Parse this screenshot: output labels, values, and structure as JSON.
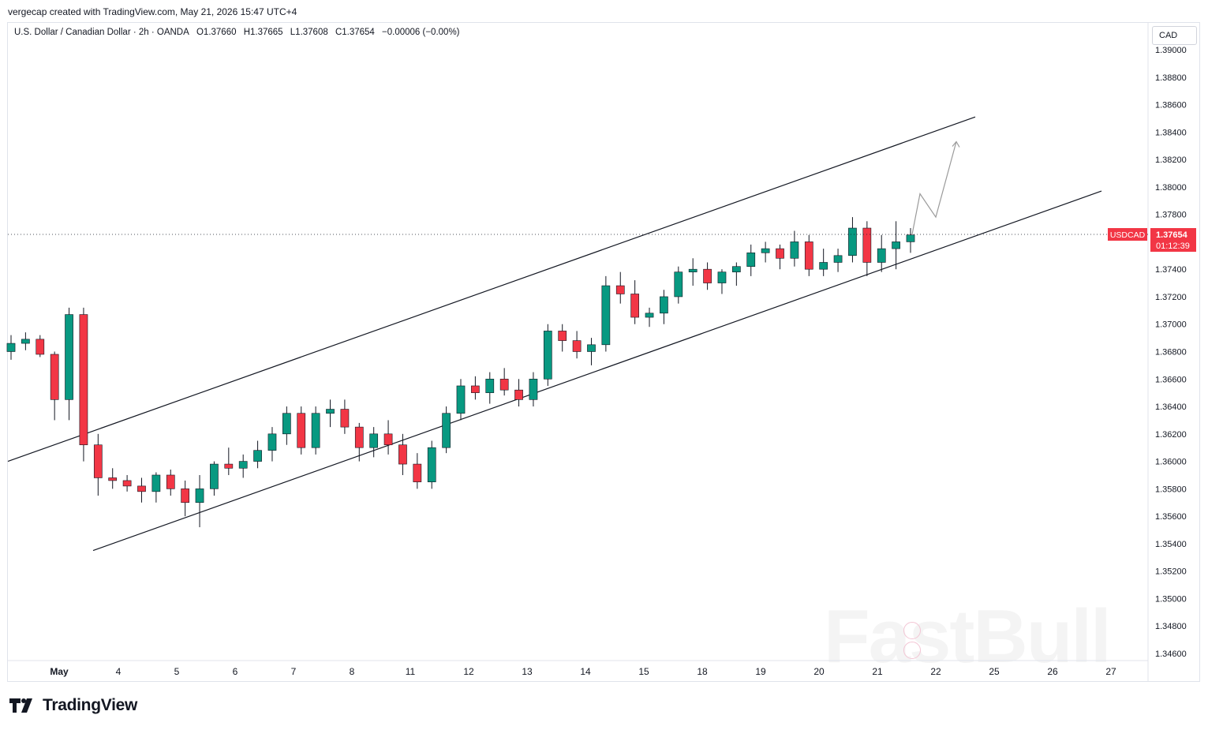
{
  "header": {
    "credit": "vergecap created with TradingView.com, May 21, 2026 15:47 UTC+4",
    "symbol_title": "U.S. Dollar / Canadian Dollar · 2h · OANDA",
    "ohlc": {
      "open": "O1.37660",
      "high": "H1.37665",
      "low": "L1.37608",
      "close": "C1.37654",
      "change": "−0.00006 (−0.00%)"
    }
  },
  "price_axis": {
    "currency": "CAD",
    "labels": [
      "1.39000",
      "1.38800",
      "1.38600",
      "1.38400",
      "1.38200",
      "1.38000",
      "1.37800",
      "1.37600",
      "1.37400",
      "1.37200",
      "1.37000",
      "1.36800",
      "1.36600",
      "1.36400",
      "1.36200",
      "1.36000",
      "1.35800",
      "1.35600",
      "1.35400",
      "1.35200",
      "1.35000",
      "1.34800",
      "1.34600"
    ]
  },
  "last_price": {
    "symbol": "USDCAD",
    "price": "1.37654",
    "countdown": "01:12:39",
    "color": "#f23645"
  },
  "colors": {
    "up": "#089981",
    "down": "#f23645",
    "wick": "#131722",
    "line": "#131722",
    "projection": "#9a9a9a"
  },
  "chart_data": {
    "type": "candlestick",
    "symbol": "USDCAD",
    "interval": "2h",
    "ylim": [
      1.3455,
      1.3907
    ],
    "x_tick_labels": [
      "May",
      "4",
      "5",
      "6",
      "7",
      "8",
      "11",
      "12",
      "13",
      "14",
      "15",
      "18",
      "19",
      "20",
      "21",
      "22",
      "25",
      "26",
      "27"
    ],
    "current_price": 1.37654,
    "grid": false,
    "candles_ohl_c": [
      [
        1.368,
        1.3692,
        1.3674,
        1.3686
      ],
      [
        1.3686,
        1.3694,
        1.3681,
        1.3689
      ],
      [
        1.3689,
        1.3692,
        1.3676,
        1.3678
      ],
      [
        1.3678,
        1.368,
        1.363,
        1.3645
      ],
      [
        1.3645,
        1.3712,
        1.363,
        1.3707
      ],
      [
        1.3707,
        1.3712,
        1.36,
        1.3612
      ],
      [
        1.3612,
        1.362,
        1.3575,
        1.3588
      ],
      [
        1.3588,
        1.3595,
        1.358,
        1.3586
      ],
      [
        1.3586,
        1.359,
        1.3578,
        1.3582
      ],
      [
        1.3582,
        1.3588,
        1.357,
        1.3578
      ],
      [
        1.3578,
        1.3592,
        1.357,
        1.359
      ],
      [
        1.359,
        1.3594,
        1.3575,
        1.358
      ],
      [
        1.358,
        1.3586,
        1.356,
        1.357
      ],
      [
        1.357,
        1.359,
        1.3552,
        1.358
      ],
      [
        1.358,
        1.36,
        1.3575,
        1.3598
      ],
      [
        1.3598,
        1.361,
        1.359,
        1.3595
      ],
      [
        1.3595,
        1.3605,
        1.3588,
        1.36
      ],
      [
        1.36,
        1.3615,
        1.3595,
        1.3608
      ],
      [
        1.3608,
        1.3625,
        1.36,
        1.362
      ],
      [
        1.362,
        1.364,
        1.3612,
        1.3635
      ],
      [
        1.3635,
        1.364,
        1.3605,
        1.361
      ],
      [
        1.361,
        1.364,
        1.3605,
        1.3635
      ],
      [
        1.3635,
        1.3645,
        1.3625,
        1.3638
      ],
      [
        1.3638,
        1.3645,
        1.362,
        1.3625
      ],
      [
        1.3625,
        1.3628,
        1.36,
        1.361
      ],
      [
        1.361,
        1.3625,
        1.3603,
        1.362
      ],
      [
        1.362,
        1.363,
        1.3605,
        1.3612
      ],
      [
        1.3612,
        1.362,
        1.359,
        1.3598
      ],
      [
        1.3598,
        1.3606,
        1.358,
        1.3585
      ],
      [
        1.3585,
        1.3615,
        1.358,
        1.361
      ],
      [
        1.361,
        1.364,
        1.3606,
        1.3635
      ],
      [
        1.3635,
        1.366,
        1.363,
        1.3655
      ],
      [
        1.3655,
        1.3662,
        1.3645,
        1.365
      ],
      [
        1.365,
        1.3665,
        1.3642,
        1.366
      ],
      [
        1.366,
        1.3668,
        1.3648,
        1.3652
      ],
      [
        1.3652,
        1.366,
        1.364,
        1.3645
      ],
      [
        1.3645,
        1.3665,
        1.364,
        1.366
      ],
      [
        1.366,
        1.37,
        1.3655,
        1.3695
      ],
      [
        1.3695,
        1.37,
        1.368,
        1.3688
      ],
      [
        1.3688,
        1.3695,
        1.3675,
        1.368
      ],
      [
        1.368,
        1.369,
        1.367,
        1.3685
      ],
      [
        1.3685,
        1.3735,
        1.368,
        1.3728
      ],
      [
        1.3728,
        1.3738,
        1.3715,
        1.3722
      ],
      [
        1.3722,
        1.3732,
        1.37,
        1.3705
      ],
      [
        1.3705,
        1.3712,
        1.3698,
        1.3708
      ],
      [
        1.3708,
        1.3725,
        1.37,
        1.372
      ],
      [
        1.372,
        1.3742,
        1.3715,
        1.3738
      ],
      [
        1.3738,
        1.3748,
        1.3728,
        1.374
      ],
      [
        1.374,
        1.3745,
        1.3725,
        1.373
      ],
      [
        1.373,
        1.374,
        1.3722,
        1.3738
      ],
      [
        1.3738,
        1.3745,
        1.3728,
        1.3742
      ],
      [
        1.3742,
        1.3758,
        1.3735,
        1.3752
      ],
      [
        1.3752,
        1.376,
        1.3745,
        1.3755
      ],
      [
        1.3755,
        1.3758,
        1.374,
        1.3748
      ],
      [
        1.3748,
        1.3768,
        1.3742,
        1.376
      ],
      [
        1.376,
        1.3765,
        1.3735,
        1.374
      ],
      [
        1.374,
        1.3755,
        1.3735,
        1.3745
      ],
      [
        1.3745,
        1.3755,
        1.3738,
        1.375
      ],
      [
        1.375,
        1.3778,
        1.3745,
        1.377
      ],
      [
        1.377,
        1.3775,
        1.3735,
        1.3745
      ],
      [
        1.3745,
        1.3765,
        1.3738,
        1.3755
      ],
      [
        1.3755,
        1.3775,
        1.374,
        1.376
      ],
      [
        1.376,
        1.377,
        1.3752,
        1.3765
      ]
    ],
    "drawings": {
      "upper_channel_line": [
        [
          "Apr 30",
          1.36
        ],
        [
          "May 22",
          1.3851
        ]
      ],
      "lower_channel_line": [
        [
          "May 3",
          1.3535
        ],
        [
          "May 25",
          1.3797
        ]
      ],
      "projection_path": [
        1.37654,
        1.3795,
        1.3778,
        1.3833
      ]
    }
  },
  "footer": {
    "brand": "TradingView"
  },
  "watermark": {
    "text": "FastBull"
  }
}
